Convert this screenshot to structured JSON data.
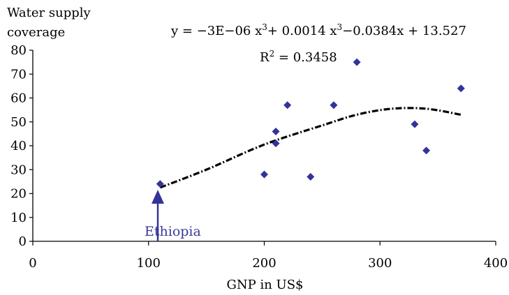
{
  "chart_data": {
    "type": "scatter",
    "ylabel_lines": [
      "Water supply",
      "coverage"
    ],
    "xlabel": "GNP in US$",
    "xlim": [
      0,
      400
    ],
    "ylim": [
      0,
      80
    ],
    "x_ticks": [
      0,
      100,
      200,
      300,
      400
    ],
    "y_ticks": [
      0,
      10,
      20,
      30,
      40,
      50,
      60,
      70,
      80
    ],
    "grid": false,
    "marker_color": "#333399",
    "trend_color": "#000000",
    "points": [
      {
        "x": 110,
        "y": 24
      },
      {
        "x": 200,
        "y": 28
      },
      {
        "x": 210,
        "y": 41
      },
      {
        "x": 210,
        "y": 46
      },
      {
        "x": 220,
        "y": 57
      },
      {
        "x": 240,
        "y": 27
      },
      {
        "x": 260,
        "y": 57
      },
      {
        "x": 280,
        "y": 75
      },
      {
        "x": 330,
        "y": 49
      },
      {
        "x": 340,
        "y": 38
      },
      {
        "x": 370,
        "y": 64
      }
    ],
    "trendline": {
      "type": "polynomial",
      "equation_text": "y = −3E−06 x",
      "equation_sup1": "3",
      "equation_mid": "+ 0.0014 x",
      "equation_sup2": "3",
      "equation_end": "−0.0384x + 13.527",
      "r2_prefix": "R",
      "r2_sup": "2",
      "r2_value": " = 0.3458",
      "points": [
        {
          "x": 110,
          "y": 22.5
        },
        {
          "x": 150,
          "y": 30
        },
        {
          "x": 200,
          "y": 40.5
        },
        {
          "x": 250,
          "y": 48.5
        },
        {
          "x": 280,
          "y": 53
        },
        {
          "x": 310,
          "y": 55.5
        },
        {
          "x": 340,
          "y": 55.5
        },
        {
          "x": 370,
          "y": 53
        }
      ]
    },
    "annotation": {
      "label": "Ethiopia",
      "x": 108,
      "y_from": 0,
      "y_to": 21,
      "color": "#333399"
    }
  }
}
